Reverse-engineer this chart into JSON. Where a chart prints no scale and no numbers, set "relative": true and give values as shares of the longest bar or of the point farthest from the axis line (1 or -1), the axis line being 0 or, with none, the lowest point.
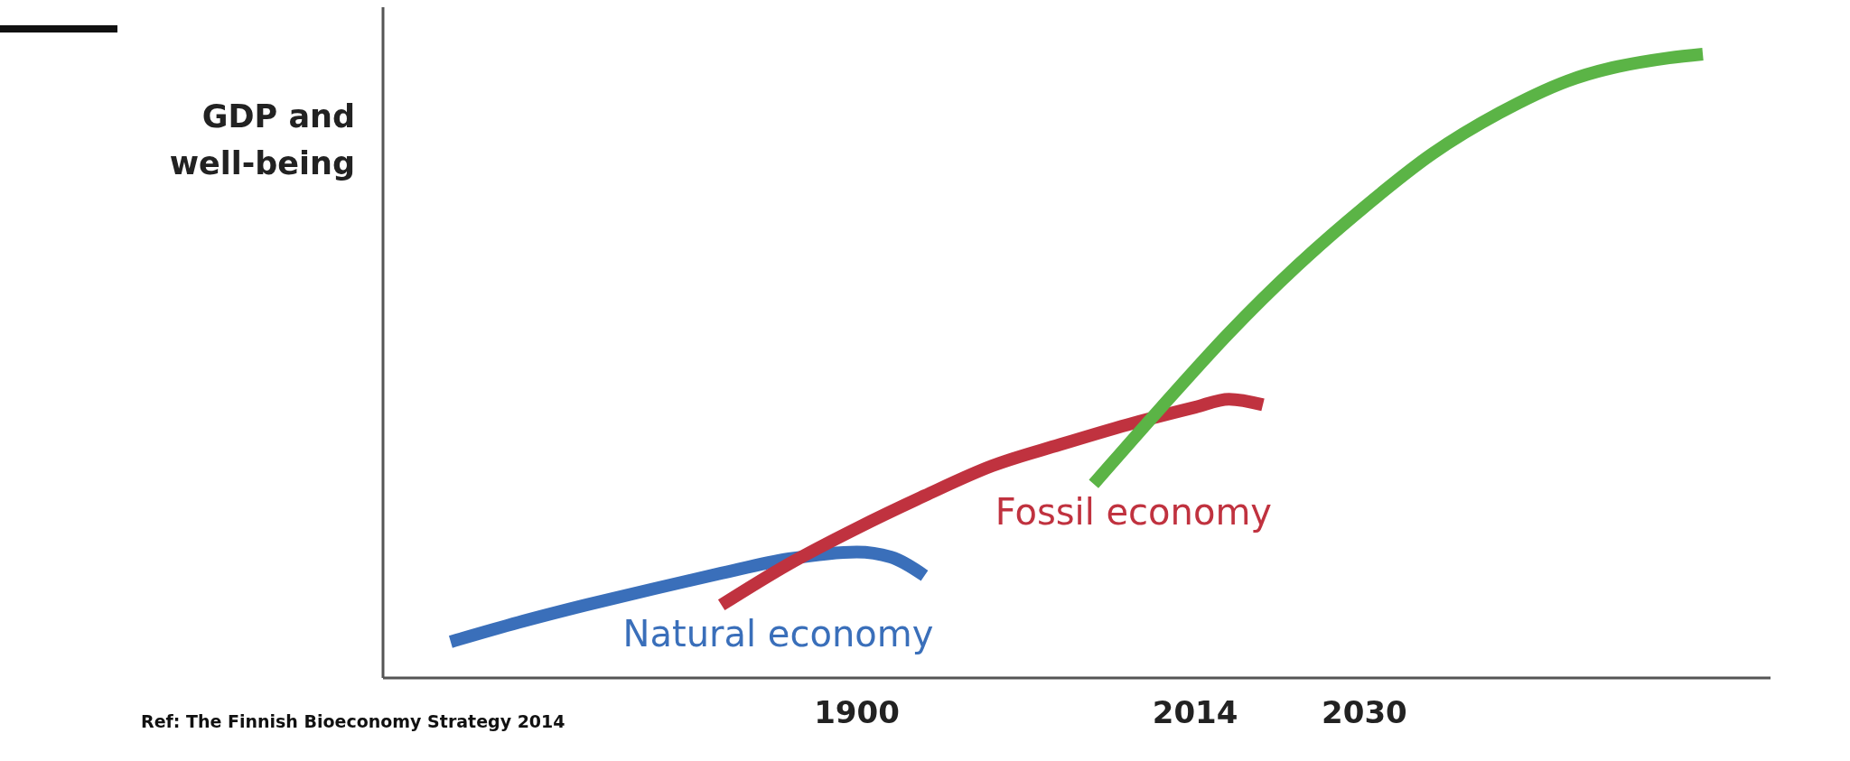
{
  "chart_data": {
    "type": "line",
    "relative": true,
    "ylabel": "GDP and\nwell-being",
    "categories": [
      null,
      null,
      null,
      null,
      null,
      null,
      null,
      null,
      null,
      null,
      null,
      null,
      null,
      null,
      "1900",
      null,
      null,
      null,
      null,
      null,
      null,
      null,
      null,
      null,
      "2014",
      null,
      null,
      null,
      null,
      "2030",
      null,
      null,
      null,
      null,
      null,
      null,
      null,
      null,
      null,
      null,
      null,
      null
    ],
    "series": [
      {
        "name": "Natural economy",
        "color": "#3a6fba",
        "values": [
          null,
          null,
          0.058,
          null,
          0.089,
          null,
          0.117,
          null,
          0.143,
          null,
          0.168,
          null,
          0.191,
          null,
          0.202,
          0.194,
          0.164,
          null,
          null,
          null,
          null,
          null,
          null,
          null,
          null,
          null,
          null,
          null,
          null,
          null,
          null,
          null,
          null,
          null,
          null,
          null,
          null,
          null,
          null,
          null,
          null,
          null
        ]
      },
      {
        "name": "Fossil economy",
        "color": "#c0323f",
        "values": [
          null,
          null,
          null,
          null,
          null,
          null,
          null,
          null,
          null,
          null,
          0.117,
          null,
          0.183,
          null,
          0.24,
          null,
          0.292,
          null,
          0.34,
          null,
          0.374,
          null,
          0.406,
          null,
          0.434,
          0.447,
          0.438,
          null,
          null,
          null,
          null,
          null,
          null,
          null,
          null,
          null,
          null,
          null,
          null,
          null,
          null,
          null
        ]
      },
      {
        "color": "#5bb446",
        "values": [
          null,
          null,
          null,
          null,
          null,
          null,
          null,
          null,
          null,
          null,
          null,
          null,
          null,
          null,
          null,
          null,
          null,
          null,
          null,
          null,
          null,
          0.311,
          null,
          0.434,
          null,
          0.553,
          null,
          0.66,
          null,
          0.755,
          null,
          0.84,
          null,
          0.906,
          null,
          0.957,
          null,
          null,
          0.994,
          1.0,
          null,
          null
        ]
      }
    ],
    "legend": false,
    "grid": false,
    "marker": "none",
    "line_style": "solid",
    "tick_labels": "x",
    "annotations": [
      "Ref: The Finnish Bioeconomy Strategy 2014"
    ]
  }
}
